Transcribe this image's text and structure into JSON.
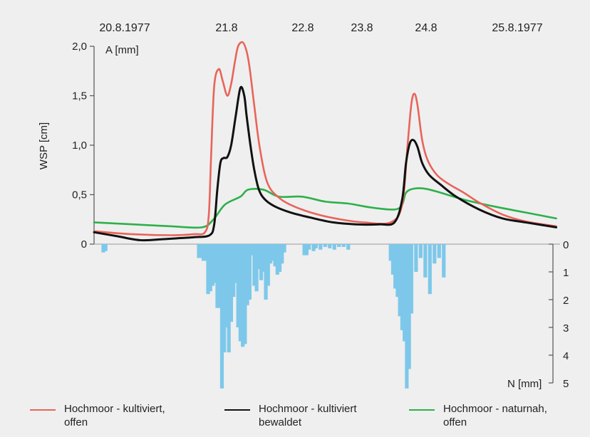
{
  "chart_data": {
    "type": "line",
    "title": "",
    "dates": [
      "20.8.1977",
      "21.8",
      "22.8",
      "23.8",
      "24.8",
      "25.8.1977"
    ],
    "upper_axis": {
      "ylabel": "WSP [cm]",
      "unit_label": "A [mm]",
      "ylim": [
        0,
        2.0
      ],
      "ticks": [
        "0",
        "0,5",
        "1,0",
        "1,5",
        "2,0"
      ]
    },
    "lower_axis": {
      "label": "N [mm]",
      "ylim": [
        0,
        5
      ],
      "ticks": [
        "0",
        "1",
        "2",
        "3",
        "4",
        "5"
      ]
    },
    "xlim_days": [
      20.0,
      26.05
    ],
    "series": [
      {
        "name": "Hochmoor - kultiviert, offen",
        "color": "#e8645a",
        "x": [
          20.0,
          20.5,
          21.0,
          21.3,
          21.44,
          21.49,
          21.52,
          21.56,
          21.62,
          21.67,
          21.73,
          21.78,
          21.83,
          21.87,
          21.93,
          21.98,
          22.02,
          22.08,
          22.15,
          22.25,
          22.4,
          22.6,
          22.9,
          23.2,
          23.5,
          23.85,
          24.0,
          24.07,
          24.12,
          24.16,
          24.2,
          24.26,
          24.33,
          24.45,
          24.6,
          24.8,
          25.0,
          25.3,
          25.6,
          26.0
        ],
        "y": [
          0.13,
          0.1,
          0.09,
          0.1,
          0.12,
          0.3,
          0.9,
          1.6,
          1.77,
          1.65,
          1.5,
          1.62,
          1.85,
          2.0,
          2.04,
          1.95,
          1.78,
          1.4,
          0.98,
          0.62,
          0.47,
          0.38,
          0.3,
          0.25,
          0.22,
          0.22,
          0.4,
          1.0,
          1.42,
          1.52,
          1.4,
          1.05,
          0.85,
          0.7,
          0.61,
          0.52,
          0.42,
          0.3,
          0.23,
          0.18
        ]
      },
      {
        "name": "Hochmoor - kultiviert bewaldet",
        "color": "#111111",
        "x": [
          20.0,
          20.3,
          20.6,
          20.9,
          21.1,
          21.3,
          21.5,
          21.56,
          21.6,
          21.64,
          21.68,
          21.73,
          21.78,
          21.84,
          21.9,
          21.95,
          21.98,
          22.03,
          22.08,
          22.14,
          22.22,
          22.35,
          22.55,
          22.8,
          23.1,
          23.4,
          23.7,
          23.9,
          24.0,
          24.05,
          24.1,
          24.15,
          24.2,
          24.26,
          24.35,
          24.5,
          24.7,
          25.0,
          25.3,
          25.6,
          26.0
        ],
        "y": [
          0.12,
          0.08,
          0.04,
          0.05,
          0.06,
          0.07,
          0.09,
          0.2,
          0.55,
          0.82,
          0.87,
          0.88,
          1.0,
          1.3,
          1.58,
          1.5,
          1.3,
          1.0,
          0.75,
          0.55,
          0.45,
          0.38,
          0.32,
          0.27,
          0.22,
          0.2,
          0.2,
          0.22,
          0.45,
          0.82,
          1.02,
          1.05,
          0.98,
          0.82,
          0.7,
          0.6,
          0.48,
          0.35,
          0.26,
          0.22,
          0.17
        ]
      },
      {
        "name": "Hochmoor - naturnah, offen",
        "color": "#2eb04a",
        "x": [
          20.0,
          20.5,
          21.0,
          21.4,
          21.55,
          21.7,
          21.9,
          22.0,
          22.2,
          22.4,
          22.7,
          23.0,
          23.3,
          23.6,
          23.9,
          24.0,
          24.05,
          24.15,
          24.3,
          24.5,
          24.8,
          25.2,
          25.6,
          26.0
        ],
        "y": [
          0.22,
          0.2,
          0.18,
          0.17,
          0.25,
          0.4,
          0.48,
          0.55,
          0.55,
          0.48,
          0.48,
          0.43,
          0.41,
          0.37,
          0.35,
          0.4,
          0.52,
          0.56,
          0.56,
          0.52,
          0.45,
          0.38,
          0.32,
          0.26
        ]
      }
    ],
    "precipitation": {
      "name": "N [mm]",
      "color": "#7dc8ea",
      "x": [
        20.12,
        20.15,
        21.36,
        21.39,
        21.42,
        21.45,
        21.48,
        21.51,
        21.54,
        21.57,
        21.6,
        21.63,
        21.66,
        21.69,
        21.72,
        21.75,
        21.78,
        21.81,
        21.84,
        21.87,
        21.9,
        21.93,
        21.96,
        21.99,
        22.02,
        22.05,
        22.08,
        22.11,
        22.14,
        22.17,
        22.2,
        22.23,
        22.26,
        22.29,
        22.32,
        22.35,
        22.38,
        22.41,
        22.44,
        22.47,
        22.73,
        22.76,
        22.79,
        22.85,
        22.88,
        22.94,
        23.0,
        23.06,
        23.12,
        23.18,
        23.24,
        23.3,
        23.85,
        23.88,
        23.91,
        23.94,
        23.97,
        24.0,
        24.03,
        24.06,
        24.09,
        24.12,
        24.18,
        24.24,
        24.3,
        24.36,
        24.42,
        24.48,
        24.54
      ],
      "values": [
        0.3,
        0.25,
        0.5,
        0.5,
        0.6,
        0.6,
        1.8,
        1.7,
        1.5,
        1.4,
        2.3,
        2.3,
        5.2,
        3.9,
        3.0,
        3.9,
        2.8,
        1.9,
        1.4,
        3.0,
        3.5,
        3.7,
        3.6,
        2.2,
        2.0,
        0.4,
        1.5,
        1.7,
        0.9,
        1.3,
        1.0,
        2.0,
        1.5,
        0.7,
        0.6,
        0.8,
        1.1,
        1.0,
        0.7,
        0.3,
        0.4,
        0.4,
        0.2,
        0.25,
        0.15,
        0.2,
        0.1,
        0.15,
        0.2,
        0.1,
        0.1,
        0.2,
        0.6,
        1.1,
        1.6,
        1.9,
        2.6,
        3.1,
        3.5,
        5.2,
        4.5,
        2.5,
        1.0,
        0.5,
        1.2,
        1.8,
        0.7,
        0.5,
        1.2
      ]
    }
  },
  "legend": [
    {
      "label": "Hochmoor - kultiviert, offen",
      "line1": "Hochmoor - kultiviert,",
      "line2": "offen",
      "color": "#e8645a"
    },
    {
      "label": "Hochmoor - kultiviert bewaldet",
      "line1": "Hochmoor - kultiviert",
      "line2": "bewaldet",
      "color": "#111111"
    },
    {
      "label": "Hochmoor - naturnah, offen",
      "line1": "Hochmoor - naturnah,",
      "line2": "offen",
      "color": "#2eb04a"
    }
  ]
}
